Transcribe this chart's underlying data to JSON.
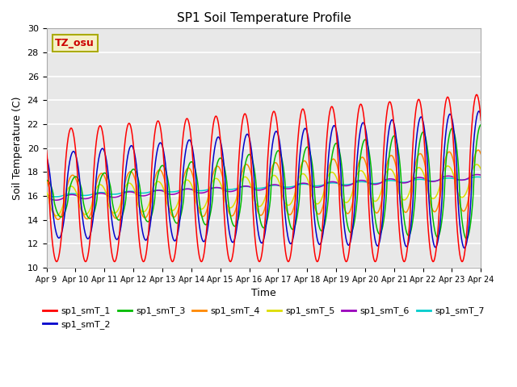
{
  "title": "SP1 Soil Temperature Profile",
  "xlabel": "Time",
  "ylabel": "Soil Temperature (C)",
  "ylim": [
    10,
    30
  ],
  "plot_bg_color": "#e8e8e8",
  "grid_color": "white",
  "tz_label": "TZ_osu",
  "tz_label_color": "#cc0000",
  "tz_box_color": "#f5f0c8",
  "tz_box_edge": "#aaaa00",
  "series_colors": [
    "#ff0000",
    "#0000cc",
    "#00bb00",
    "#ff8800",
    "#dddd00",
    "#9900bb",
    "#00cccc"
  ],
  "series_labels": [
    "sp1_smT_1",
    "sp1_smT_2",
    "sp1_smT_3",
    "sp1_smT_4",
    "sp1_smT_5",
    "sp1_smT_6",
    "sp1_smT_7"
  ],
  "n_days": 15,
  "points_per_day": 96,
  "series_params": [
    {
      "base": 16.0,
      "rise": 0.1,
      "amp0": 5.5,
      "amp_growth": 0.1,
      "phase": 0.0,
      "lag": 0.0
    },
    {
      "base": 16.0,
      "rise": 0.09,
      "amp0": 3.5,
      "amp_growth": 0.15,
      "phase": 0.0,
      "lag": 0.08
    },
    {
      "base": 15.8,
      "rise": 0.09,
      "amp0": 1.5,
      "amp_growth": 0.22,
      "phase": 0.0,
      "lag": 0.15
    },
    {
      "base": 15.8,
      "rise": 0.1,
      "amp0": 1.8,
      "amp_growth": 0.05,
      "phase": 0.0,
      "lag": 0.05
    },
    {
      "base": 15.5,
      "rise": 0.12,
      "amp0": 1.2,
      "amp_growth": 0.01,
      "phase": 0.0,
      "lag": 0.0
    },
    {
      "base": 15.8,
      "rise": 0.12,
      "amp0": 0.2,
      "amp_growth": 0.0,
      "phase": 0.0,
      "lag": 0.0
    },
    {
      "base": 16.0,
      "rise": 0.1,
      "amp0": 0.1,
      "amp_growth": 0.0,
      "phase": 0.0,
      "lag": 0.0
    }
  ],
  "date_labels": [
    "Apr 9",
    "Apr 10",
    "Apr 11",
    "Apr 12",
    "Apr 13",
    "Apr 14",
    "Apr 15",
    "Apr 16",
    "Apr 17",
    "Apr 18",
    "Apr 19",
    "Apr 20",
    "Apr 21",
    "Apr 22",
    "Apr 23",
    "Apr 24"
  ]
}
